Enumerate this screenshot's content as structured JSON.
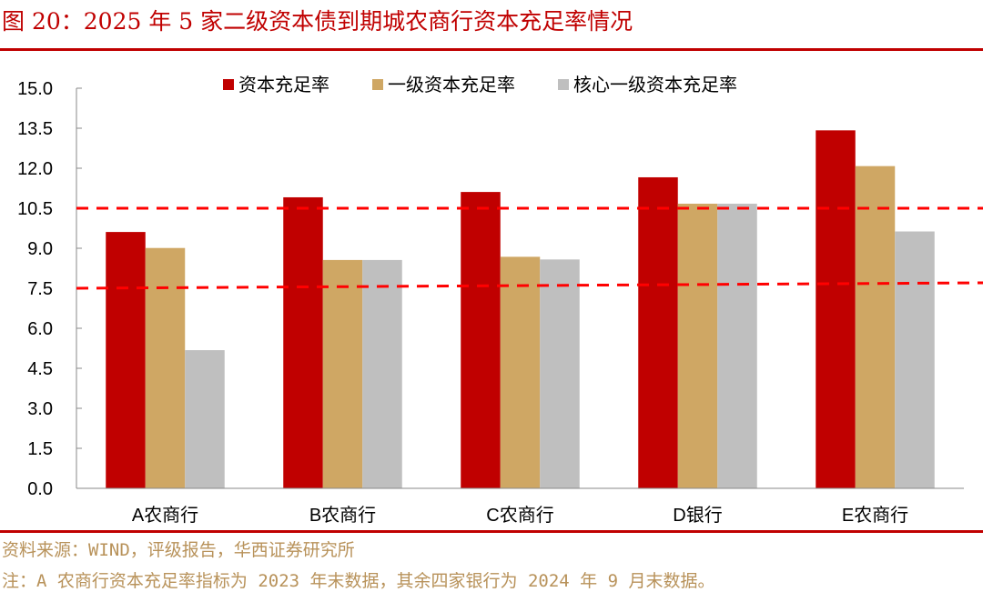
{
  "header": {
    "title": "图 20：2025 年 5 家二级资本债到期城农商行资本充足率情况"
  },
  "footer": {
    "source": "资料来源：WIND，评级报告，华西证券研究所",
    "note": "注：A 农商行资本充足率指标为 2023 年末数据，其余四家银行为 2024 年 9 月末数据。"
  },
  "colors": {
    "accent": "#c00000",
    "series_1": "#c00000",
    "series_2": "#cfa764",
    "series_3": "#bfbfbf",
    "reference_line": "#ff0000",
    "footer_text": "#b8925a"
  },
  "chart_data": {
    "type": "bar",
    "title": "2025 年 5 家二级资本债到期城农商行资本充足率情况",
    "xlabel": "",
    "ylabel": "",
    "categories": [
      "A农商行",
      "B农商行",
      "C农商行",
      "D银行",
      "E农商行"
    ],
    "series": [
      {
        "name": "资本充足率",
        "color": "#c00000",
        "values": [
          9.61,
          10.91,
          11.11,
          11.66,
          13.42
        ]
      },
      {
        "name": "一级资本充足率",
        "color": "#cfa764",
        "values": [
          9.01,
          8.56,
          8.68,
          10.67,
          12.08
        ]
      },
      {
        "name": "核心一级资本充足率",
        "color": "#bfbfbf",
        "values": [
          5.18,
          8.56,
          8.58,
          10.67,
          9.63
        ]
      }
    ],
    "ylim": [
      0,
      15
    ],
    "yticks": [
      "0.0",
      "1.5",
      "3.0",
      "4.5",
      "6.0",
      "7.5",
      "9.0",
      "10.5",
      "12.0",
      "13.5",
      "15.0"
    ],
    "reference_lines": [
      {
        "value": 10.5,
        "style": "dashed",
        "color": "#ff0000"
      },
      {
        "value": 7.5,
        "style": "dashed",
        "color": "#ff0000"
      }
    ],
    "grid": false,
    "legend_position": "top"
  }
}
